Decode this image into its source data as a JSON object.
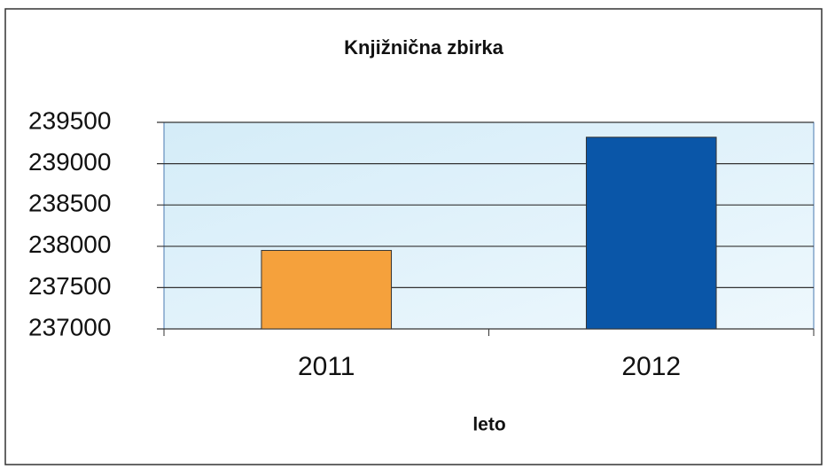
{
  "chart_data": {
    "type": "bar",
    "title": "Knjižnična zbirka",
    "x_label": "leto",
    "categories": [
      "2011",
      "2012"
    ],
    "values": [
      237950,
      239320
    ],
    "colors": [
      "#f5a13c",
      "#0a56a8"
    ],
    "ylim": [
      237000,
      239500
    ],
    "yticks": [
      237000,
      237500,
      238000,
      238500,
      239000,
      239500
    ],
    "grid": true
  }
}
